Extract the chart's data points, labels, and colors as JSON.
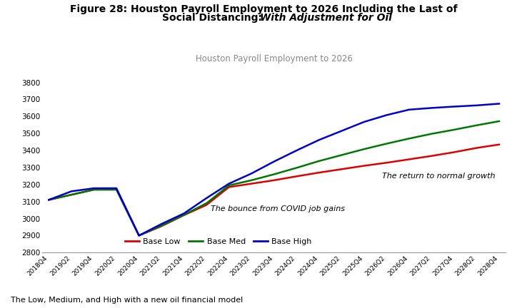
{
  "title_line1": "Figure 28: Houston Payroll Employment to 2026 Including the Last of",
  "title_line2_normal": "Social Distancing: ",
  "title_line2_italic": "With Adjustment for Oil",
  "subtitle": "Houston Payroll Employment to 2026",
  "footnote": "The Low, Medium, and High with a new oil financial model",
  "annotation1": "The bounce from COVID job gains",
  "annotation2": "The return to normal growth",
  "ylim": [
    2800,
    3850
  ],
  "yticks": [
    2800,
    2900,
    3000,
    3100,
    3200,
    3300,
    3400,
    3500,
    3600,
    3700,
    3800
  ],
  "colors": {
    "base_low": "#dd0000",
    "base_med": "#007700",
    "base_high": "#0000cc"
  },
  "x_labels": [
    "2018Q4",
    "2019Q2",
    "2019Q4",
    "2020Q2",
    "2020Q4",
    "2021Q2",
    "2021Q4",
    "2022Q2",
    "2022Q4",
    "2023Q2",
    "2023Q4",
    "2024Q2",
    "2024Q4",
    "2025Q2",
    "2025Q4",
    "2026Q2",
    "2026Q4",
    "2027Q2",
    "2027Q4",
    "2028Q2",
    "2028Q4"
  ],
  "base_low": [
    3110,
    3140,
    3170,
    3170,
    2900,
    2955,
    3020,
    3080,
    3185,
    3205,
    3225,
    3248,
    3270,
    3290,
    3310,
    3328,
    3348,
    3368,
    3390,
    3415,
    3435
  ],
  "base_med": [
    3110,
    3140,
    3170,
    3170,
    2900,
    2958,
    3022,
    3090,
    3195,
    3225,
    3260,
    3298,
    3338,
    3373,
    3408,
    3440,
    3470,
    3498,
    3522,
    3548,
    3572
  ],
  "base_high": [
    3110,
    3160,
    3178,
    3178,
    2900,
    2968,
    3030,
    3120,
    3205,
    3265,
    3335,
    3400,
    3462,
    3515,
    3568,
    3608,
    3640,
    3650,
    3658,
    3665,
    3675
  ]
}
